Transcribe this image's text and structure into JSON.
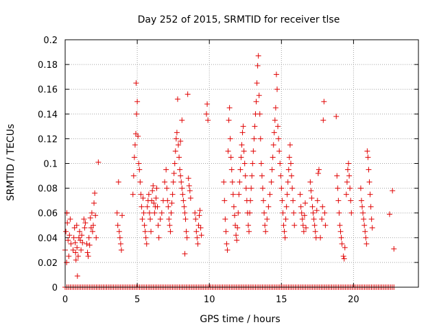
{
  "chart_data": {
    "type": "scatter",
    "title": "Day 252 of 2015, SRMTID for receiver tlse",
    "xlabel": "GPS time / hours",
    "ylabel": "SRMTID / TECUs",
    "xlim": [
      0,
      24.5
    ],
    "ylim": [
      0,
      0.2
    ],
    "x_ticks": [
      0,
      5,
      10,
      15,
      20
    ],
    "x_tick_labels": [
      "0",
      "5",
      "10",
      "15",
      "20"
    ],
    "y_ticks": [
      0,
      0.02,
      0.04,
      0.06,
      0.08,
      0.1,
      0.12,
      0.14,
      0.16,
      0.18,
      0.2
    ],
    "y_tick_labels": [
      "0",
      "0.02",
      "0.04",
      "0.06",
      "0.08",
      "0.1",
      "0.12",
      "0.14",
      "0.16",
      "0.18",
      "0.2"
    ],
    "grid": true,
    "marker": "+",
    "marker_color": "#e00000",
    "series": [
      {
        "points": [
          [
            0.0,
            0.03
          ],
          [
            0.05,
            0.045
          ],
          [
            0.1,
            0.02
          ],
          [
            0.12,
            0.06
          ],
          [
            0.15,
            0.052
          ],
          [
            0.2,
            0.038
          ],
          [
            0.25,
            0.025
          ],
          [
            0.3,
            0.042
          ],
          [
            0.35,
            0.055
          ],
          [
            0.4,
            0.035
          ],
          [
            0.55,
            0.03
          ],
          [
            0.6,
            0.04
          ],
          [
            0.65,
            0.048
          ],
          [
            0.7,
            0.036
          ],
          [
            0.72,
            0.028
          ],
          [
            0.75,
            0.022
          ],
          [
            0.8,
            0.05
          ],
          [
            0.82,
            0.032
          ],
          [
            0.85,
            0.009
          ],
          [
            0.9,
            0.025
          ],
          [
            0.95,
            0.04
          ],
          [
            1.0,
            0.045
          ],
          [
            1.05,
            0.038
          ],
          [
            1.1,
            0.03
          ],
          [
            1.15,
            0.042
          ],
          [
            1.2,
            0.036
          ],
          [
            1.3,
            0.055
          ],
          [
            1.35,
            0.048
          ],
          [
            1.4,
            0.052
          ],
          [
            1.5,
            0.035
          ],
          [
            1.55,
            0.028
          ],
          [
            1.6,
            0.025
          ],
          [
            1.65,
            0.04
          ],
          [
            1.7,
            0.034
          ],
          [
            1.75,
            0.056
          ],
          [
            1.8,
            0.048
          ],
          [
            1.85,
            0.06
          ],
          [
            1.9,
            0.045
          ],
          [
            1.95,
            0.05
          ],
          [
            2.0,
            0.068
          ],
          [
            2.05,
            0.076
          ],
          [
            2.1,
            0.058
          ],
          [
            2.15,
            0.04
          ],
          [
            2.3,
            0.101
          ],
          [
            3.6,
            0.06
          ],
          [
            3.65,
            0.05
          ],
          [
            3.7,
            0.085
          ],
          [
            3.75,
            0.045
          ],
          [
            3.8,
            0.04
          ],
          [
            3.85,
            0.035
          ],
          [
            3.9,
            0.03
          ],
          [
            3.95,
            0.058
          ],
          [
            4.7,
            0.075
          ],
          [
            4.75,
            0.09
          ],
          [
            4.8,
            0.105
          ],
          [
            4.85,
            0.115
          ],
          [
            4.9,
            0.124
          ],
          [
            4.92,
            0.165
          ],
          [
            4.95,
            0.14
          ],
          [
            5.0,
            0.15
          ],
          [
            5.05,
            0.122
          ],
          [
            5.1,
            0.1
          ],
          [
            5.15,
            0.095
          ],
          [
            5.2,
            0.085
          ],
          [
            5.25,
            0.075
          ],
          [
            5.3,
            0.065
          ],
          [
            5.35,
            0.055
          ],
          [
            5.4,
            0.072
          ],
          [
            5.45,
            0.06
          ],
          [
            5.5,
            0.05
          ],
          [
            5.55,
            0.045
          ],
          [
            5.6,
            0.04
          ],
          [
            5.65,
            0.035
          ],
          [
            5.7,
            0.065
          ],
          [
            5.75,
            0.07
          ],
          [
            5.8,
            0.075
          ],
          [
            5.85,
            0.06
          ],
          [
            5.9,
            0.055
          ],
          [
            5.95,
            0.045
          ],
          [
            6.0,
            0.07
          ],
          [
            6.05,
            0.078
          ],
          [
            6.1,
            0.082
          ],
          [
            6.15,
            0.068
          ],
          [
            6.2,
            0.06
          ],
          [
            6.25,
            0.065
          ],
          [
            6.3,
            0.072
          ],
          [
            6.35,
            0.08
          ],
          [
            6.4,
            0.065
          ],
          [
            6.45,
            0.05
          ],
          [
            6.5,
            0.04
          ],
          [
            6.6,
            0.055
          ],
          [
            6.7,
            0.06
          ],
          [
            6.8,
            0.07
          ],
          [
            6.9,
            0.085
          ],
          [
            7.0,
            0.095
          ],
          [
            7.05,
            0.08
          ],
          [
            7.1,
            0.07
          ],
          [
            7.15,
            0.065
          ],
          [
            7.2,
            0.055
          ],
          [
            7.25,
            0.05
          ],
          [
            7.3,
            0.045
          ],
          [
            7.35,
            0.06
          ],
          [
            7.4,
            0.068
          ],
          [
            7.45,
            0.075
          ],
          [
            7.5,
            0.085
          ],
          [
            7.55,
            0.092
          ],
          [
            7.6,
            0.1
          ],
          [
            7.65,
            0.11
          ],
          [
            7.7,
            0.12
          ],
          [
            7.75,
            0.125
          ],
          [
            7.8,
            0.152
          ],
          [
            7.85,
            0.115
          ],
          [
            7.9,
            0.105
          ],
          [
            7.95,
            0.095
          ],
          [
            8.0,
            0.09
          ],
          [
            8.05,
            0.085
          ],
          [
            8.1,
            0.08
          ],
          [
            8.15,
            0.075
          ],
          [
            8.2,
            0.07
          ],
          [
            8.25,
            0.065
          ],
          [
            8.3,
            0.06
          ],
          [
            8.35,
            0.055
          ],
          [
            8.4,
            0.045
          ],
          [
            8.45,
            0.04
          ],
          [
            8.5,
            0.156
          ],
          [
            8.55,
            0.088
          ],
          [
            8.6,
            0.082
          ],
          [
            8.65,
            0.078
          ],
          [
            8.7,
            0.072
          ],
          [
            8.1,
            0.135
          ],
          [
            8.0,
            0.118
          ],
          [
            8.3,
            0.027
          ],
          [
            9.0,
            0.06
          ],
          [
            9.05,
            0.055
          ],
          [
            9.1,
            0.045
          ],
          [
            9.15,
            0.04
          ],
          [
            9.2,
            0.035
          ],
          [
            9.25,
            0.05
          ],
          [
            9.3,
            0.058
          ],
          [
            9.35,
            0.062
          ],
          [
            9.4,
            0.048
          ],
          [
            9.45,
            0.042
          ],
          [
            9.8,
            0.14
          ],
          [
            9.85,
            0.148
          ],
          [
            9.9,
            0.135
          ],
          [
            11.0,
            0.085
          ],
          [
            11.05,
            0.07
          ],
          [
            11.1,
            0.055
          ],
          [
            11.15,
            0.045
          ],
          [
            11.2,
            0.035
          ],
          [
            11.25,
            0.03
          ],
          [
            11.3,
            0.11
          ],
          [
            11.35,
            0.135
          ],
          [
            11.4,
            0.145
          ],
          [
            11.45,
            0.12
          ],
          [
            11.5,
            0.105
          ],
          [
            11.55,
            0.095
          ],
          [
            11.6,
            0.085
          ],
          [
            11.65,
            0.075
          ],
          [
            11.7,
            0.065
          ],
          [
            11.75,
            0.058
          ],
          [
            11.8,
            0.05
          ],
          [
            11.85,
            0.042
          ],
          [
            11.9,
            0.038
          ],
          [
            11.95,
            0.048
          ],
          [
            12.0,
            0.06
          ],
          [
            12.05,
            0.075
          ],
          [
            12.1,
            0.085
          ],
          [
            12.15,
            0.095
          ],
          [
            12.2,
            0.105
          ],
          [
            12.25,
            0.115
          ],
          [
            12.3,
            0.125
          ],
          [
            12.35,
            0.13
          ],
          [
            12.4,
            0.11
          ],
          [
            12.45,
            0.1
          ],
          [
            12.5,
            0.09
          ],
          [
            12.55,
            0.08
          ],
          [
            12.6,
            0.07
          ],
          [
            12.65,
            0.06
          ],
          [
            12.7,
            0.05
          ],
          [
            12.75,
            0.045
          ],
          [
            12.8,
            0.06
          ],
          [
            12.85,
            0.07
          ],
          [
            12.9,
            0.08
          ],
          [
            12.95,
            0.09
          ],
          [
            13.0,
            0.1
          ],
          [
            13.05,
            0.11
          ],
          [
            13.1,
            0.12
          ],
          [
            13.15,
            0.13
          ],
          [
            13.2,
            0.14
          ],
          [
            13.25,
            0.15
          ],
          [
            13.3,
            0.165
          ],
          [
            13.35,
            0.179
          ],
          [
            13.4,
            0.187
          ],
          [
            13.45,
            0.155
          ],
          [
            13.5,
            0.14
          ],
          [
            13.55,
            0.12
          ],
          [
            13.6,
            0.1
          ],
          [
            13.65,
            0.09
          ],
          [
            13.7,
            0.08
          ],
          [
            13.75,
            0.07
          ],
          [
            13.8,
            0.06
          ],
          [
            13.85,
            0.05
          ],
          [
            13.9,
            0.045
          ],
          [
            14.0,
            0.055
          ],
          [
            14.1,
            0.065
          ],
          [
            14.2,
            0.075
          ],
          [
            14.3,
            0.085
          ],
          [
            14.35,
            0.095
          ],
          [
            14.4,
            0.105
          ],
          [
            14.45,
            0.115
          ],
          [
            14.5,
            0.125
          ],
          [
            14.55,
            0.135
          ],
          [
            14.6,
            0.145
          ],
          [
            14.65,
            0.172
          ],
          [
            14.7,
            0.16
          ],
          [
            14.75,
            0.13
          ],
          [
            14.8,
            0.12
          ],
          [
            14.85,
            0.11
          ],
          [
            14.9,
            0.1
          ],
          [
            14.95,
            0.09
          ],
          [
            15.0,
            0.08
          ],
          [
            15.05,
            0.07
          ],
          [
            15.1,
            0.06
          ],
          [
            15.15,
            0.05
          ],
          [
            15.2,
            0.045
          ],
          [
            15.25,
            0.04
          ],
          [
            15.3,
            0.055
          ],
          [
            15.35,
            0.065
          ],
          [
            15.4,
            0.075
          ],
          [
            15.45,
            0.085
          ],
          [
            15.5,
            0.095
          ],
          [
            15.55,
            0.105
          ],
          [
            15.6,
            0.115
          ],
          [
            15.65,
            0.1
          ],
          [
            15.7,
            0.09
          ],
          [
            15.75,
            0.08
          ],
          [
            15.8,
            0.07
          ],
          [
            15.85,
            0.06
          ],
          [
            15.9,
            0.05
          ],
          [
            16.3,
            0.075
          ],
          [
            16.35,
            0.065
          ],
          [
            16.4,
            0.06
          ],
          [
            16.45,
            0.055
          ],
          [
            16.5,
            0.05
          ],
          [
            16.55,
            0.045
          ],
          [
            16.6,
            0.058
          ],
          [
            16.65,
            0.068
          ],
          [
            16.7,
            0.048
          ],
          [
            17.0,
            0.085
          ],
          [
            17.05,
            0.078
          ],
          [
            17.1,
            0.072
          ],
          [
            17.15,
            0.065
          ],
          [
            17.2,
            0.06
          ],
          [
            17.25,
            0.055
          ],
          [
            17.3,
            0.05
          ],
          [
            17.35,
            0.045
          ],
          [
            17.4,
            0.04
          ],
          [
            17.45,
            0.062
          ],
          [
            17.5,
            0.07
          ],
          [
            17.55,
            0.092
          ],
          [
            17.6,
            0.095
          ],
          [
            17.7,
            0.04
          ],
          [
            17.8,
            0.055
          ],
          [
            17.85,
            0.065
          ],
          [
            17.9,
            0.135
          ],
          [
            17.95,
            0.15
          ],
          [
            18.0,
            0.06
          ],
          [
            18.05,
            0.05
          ],
          [
            18.8,
            0.138
          ],
          [
            18.85,
            0.09
          ],
          [
            18.9,
            0.08
          ],
          [
            18.95,
            0.07
          ],
          [
            19.0,
            0.06
          ],
          [
            19.05,
            0.05
          ],
          [
            19.1,
            0.045
          ],
          [
            19.15,
            0.04
          ],
          [
            19.2,
            0.035
          ],
          [
            19.3,
            0.025
          ],
          [
            19.35,
            0.023
          ],
          [
            19.4,
            0.032
          ],
          [
            19.5,
            0.075
          ],
          [
            19.55,
            0.085
          ],
          [
            19.6,
            0.095
          ],
          [
            19.65,
            0.1
          ],
          [
            19.7,
            0.09
          ],
          [
            19.75,
            0.08
          ],
          [
            19.8,
            0.07
          ],
          [
            19.85,
            0.06
          ],
          [
            20.5,
            0.08
          ],
          [
            20.55,
            0.07
          ],
          [
            20.6,
            0.065
          ],
          [
            20.65,
            0.06
          ],
          [
            20.7,
            0.055
          ],
          [
            20.75,
            0.05
          ],
          [
            20.8,
            0.045
          ],
          [
            20.85,
            0.04
          ],
          [
            20.9,
            0.035
          ],
          [
            20.95,
            0.11
          ],
          [
            21.0,
            0.105
          ],
          [
            21.05,
            0.095
          ],
          [
            21.1,
            0.085
          ],
          [
            21.15,
            0.075
          ],
          [
            21.2,
            0.065
          ],
          [
            21.25,
            0.055
          ],
          [
            21.3,
            0.048
          ],
          [
            22.5,
            0.059
          ],
          [
            22.7,
            0.078
          ],
          [
            22.8,
            0.031
          ]
        ]
      }
    ]
  }
}
